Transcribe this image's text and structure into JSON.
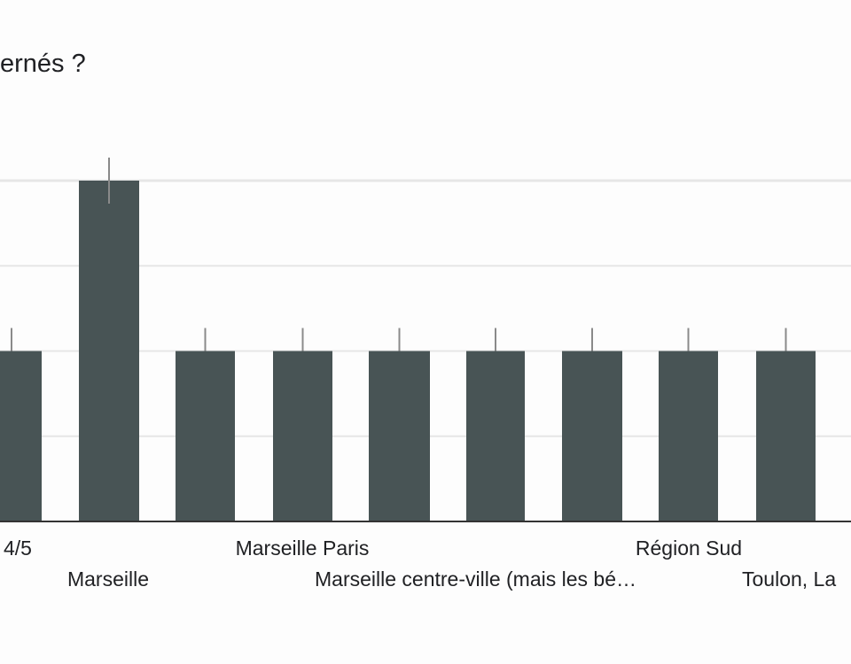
{
  "chart_data": {
    "type": "bar",
    "title": "ernés ?",
    "xlabel": "",
    "ylabel": "",
    "categories": [
      "4/5",
      "Marseille",
      "Marseille Paris",
      "Marseille centre-ville (mais les bé…",
      "",
      "",
      "Région Sud",
      "",
      "Toulon, La"
    ],
    "values": [
      1,
      2,
      1,
      1,
      1,
      1,
      1,
      1,
      1
    ],
    "ylim": [
      0,
      2
    ],
    "grid": true,
    "legend": "none",
    "colors": {
      "bar": "#485455",
      "grid": "#e6e6e6",
      "axis": "#333333",
      "errorbar": "#8a8a8a"
    }
  }
}
